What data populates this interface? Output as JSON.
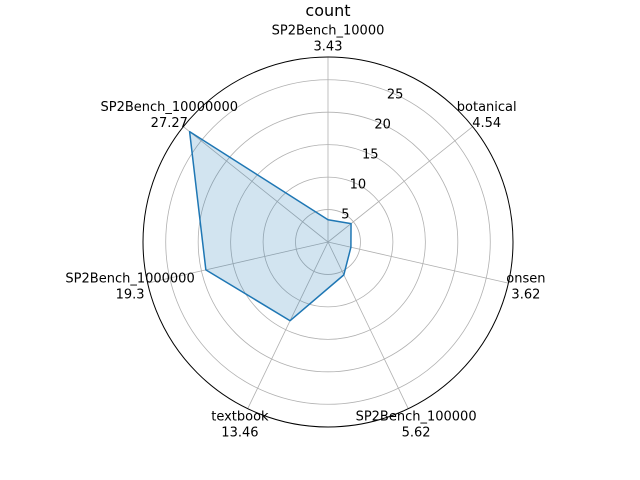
{
  "chart_data": {
    "type": "radar",
    "title": "count",
    "categories": [
      "SP2Bench_10000",
      "botanical",
      "onsen",
      "SP2Bench_100000",
      "textbook",
      "SP2Bench_1000000",
      "SP2Bench_10000000"
    ],
    "category_value_labels": [
      "3.43",
      "4.54",
      "3.62",
      "5.62",
      "13.46",
      "19.3",
      "27.27"
    ],
    "series": [
      {
        "values": [
          3.43,
          4.54,
          3.62,
          5.62,
          13.46,
          19.3,
          27.27
        ]
      }
    ],
    "radial_ticks": [
      "5",
      "10",
      "15",
      "20",
      "25"
    ],
    "rlim": [
      0,
      28.5
    ],
    "grid": true,
    "colors": {
      "line": "#1f77b4",
      "fill": "#1f77b4",
      "grid": "#b0b0b0",
      "frame": "#000000"
    }
  }
}
